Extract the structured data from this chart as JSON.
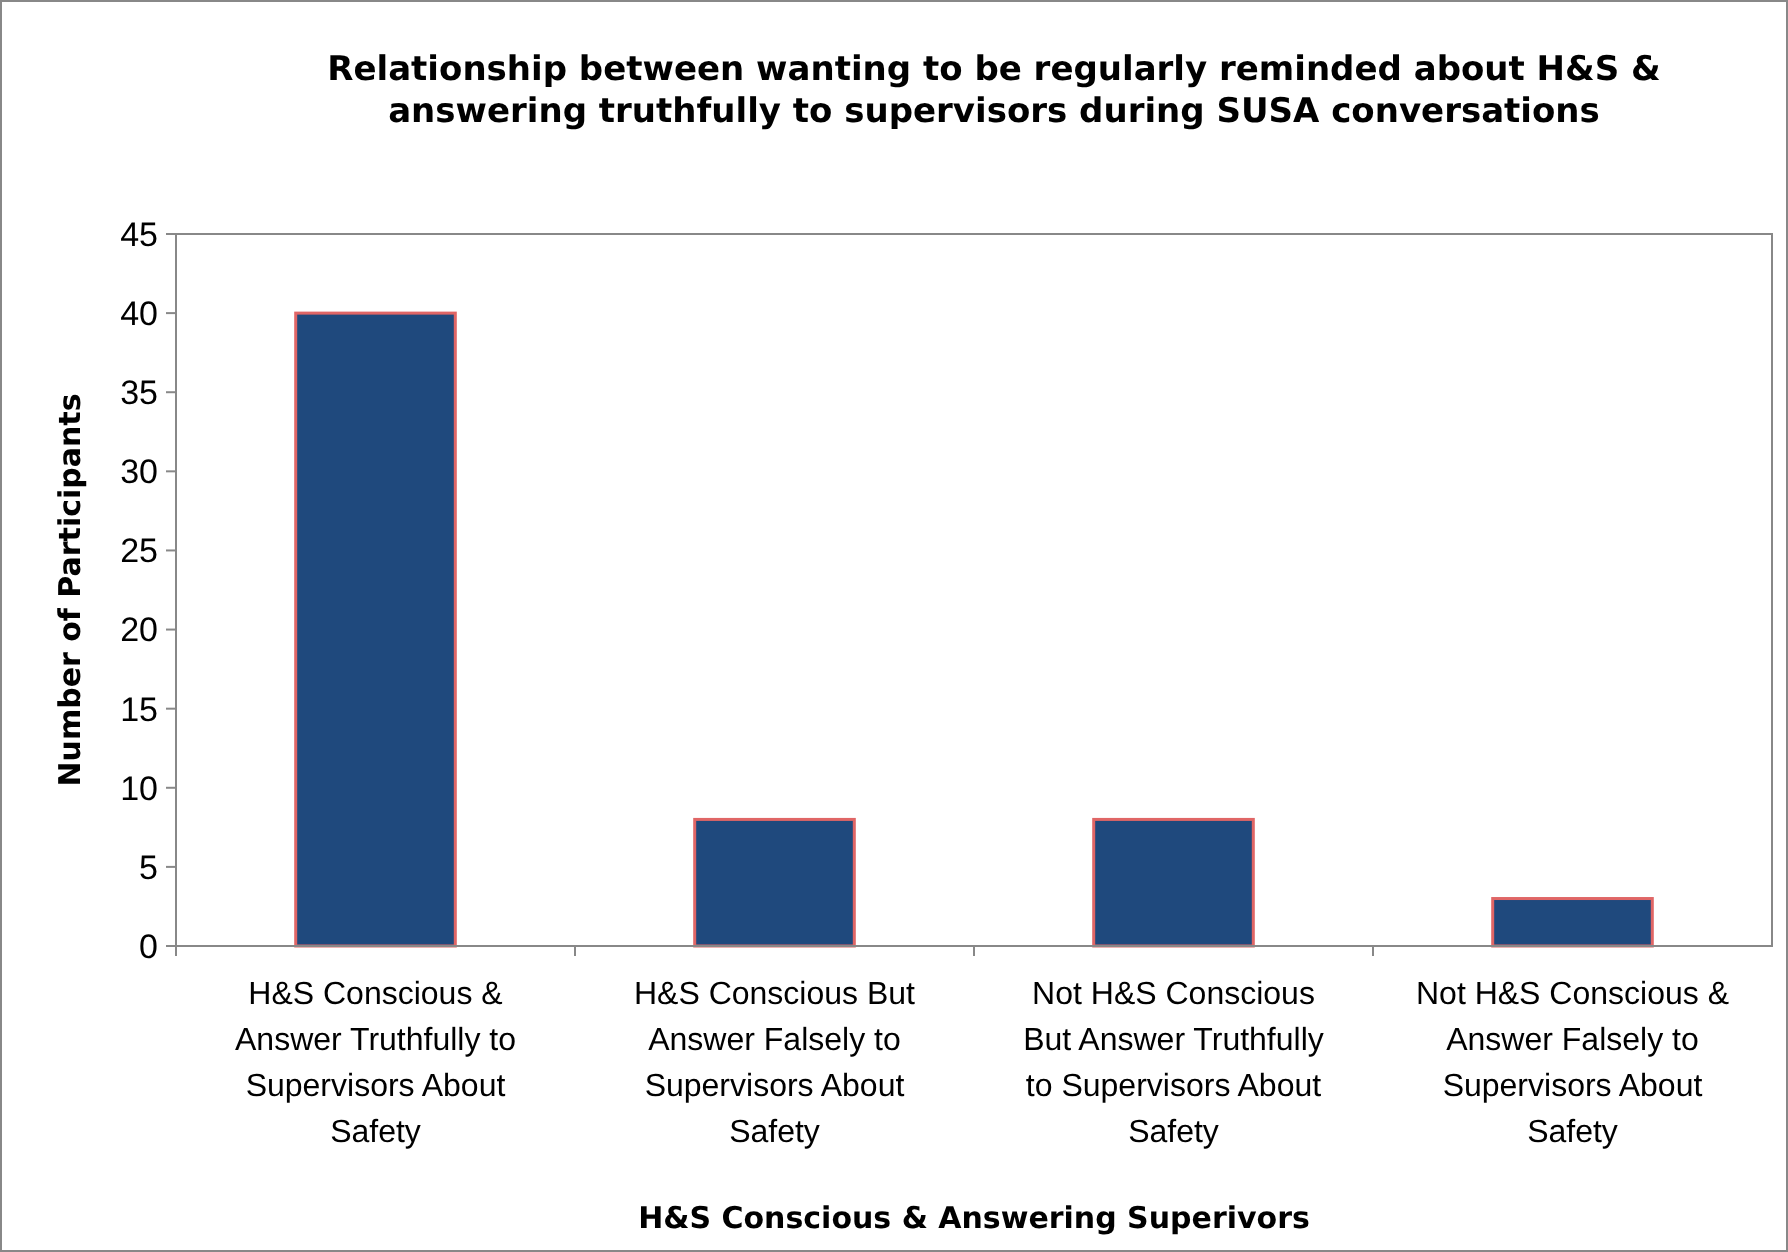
{
  "chart_data": {
    "type": "bar",
    "title": "Relationship between wanting to be regularly reminded about H&S & answering truthfully to supervisors during SUSA conversations",
    "xlabel": "H&S Conscious & Answering Superivors",
    "ylabel": "Number of Participants",
    "categories": [
      "H&S Conscious & Answer Truthfully to Supervisors About Safety",
      "H&S Conscious But Answer Falsely to Supervisors About Safety",
      "Not H&S Conscious But Answer Truthfully to Supervisors About Safety",
      "Not H&S Conscious & Answer Falsely to Supervisors About Safety"
    ],
    "values": [
      40,
      8,
      8,
      3
    ],
    "color": "#1f497d",
    "ylim": [
      0,
      45
    ],
    "yticks": [
      0,
      5,
      10,
      15,
      20,
      25,
      30,
      35,
      40,
      45
    ],
    "grid": false
  }
}
